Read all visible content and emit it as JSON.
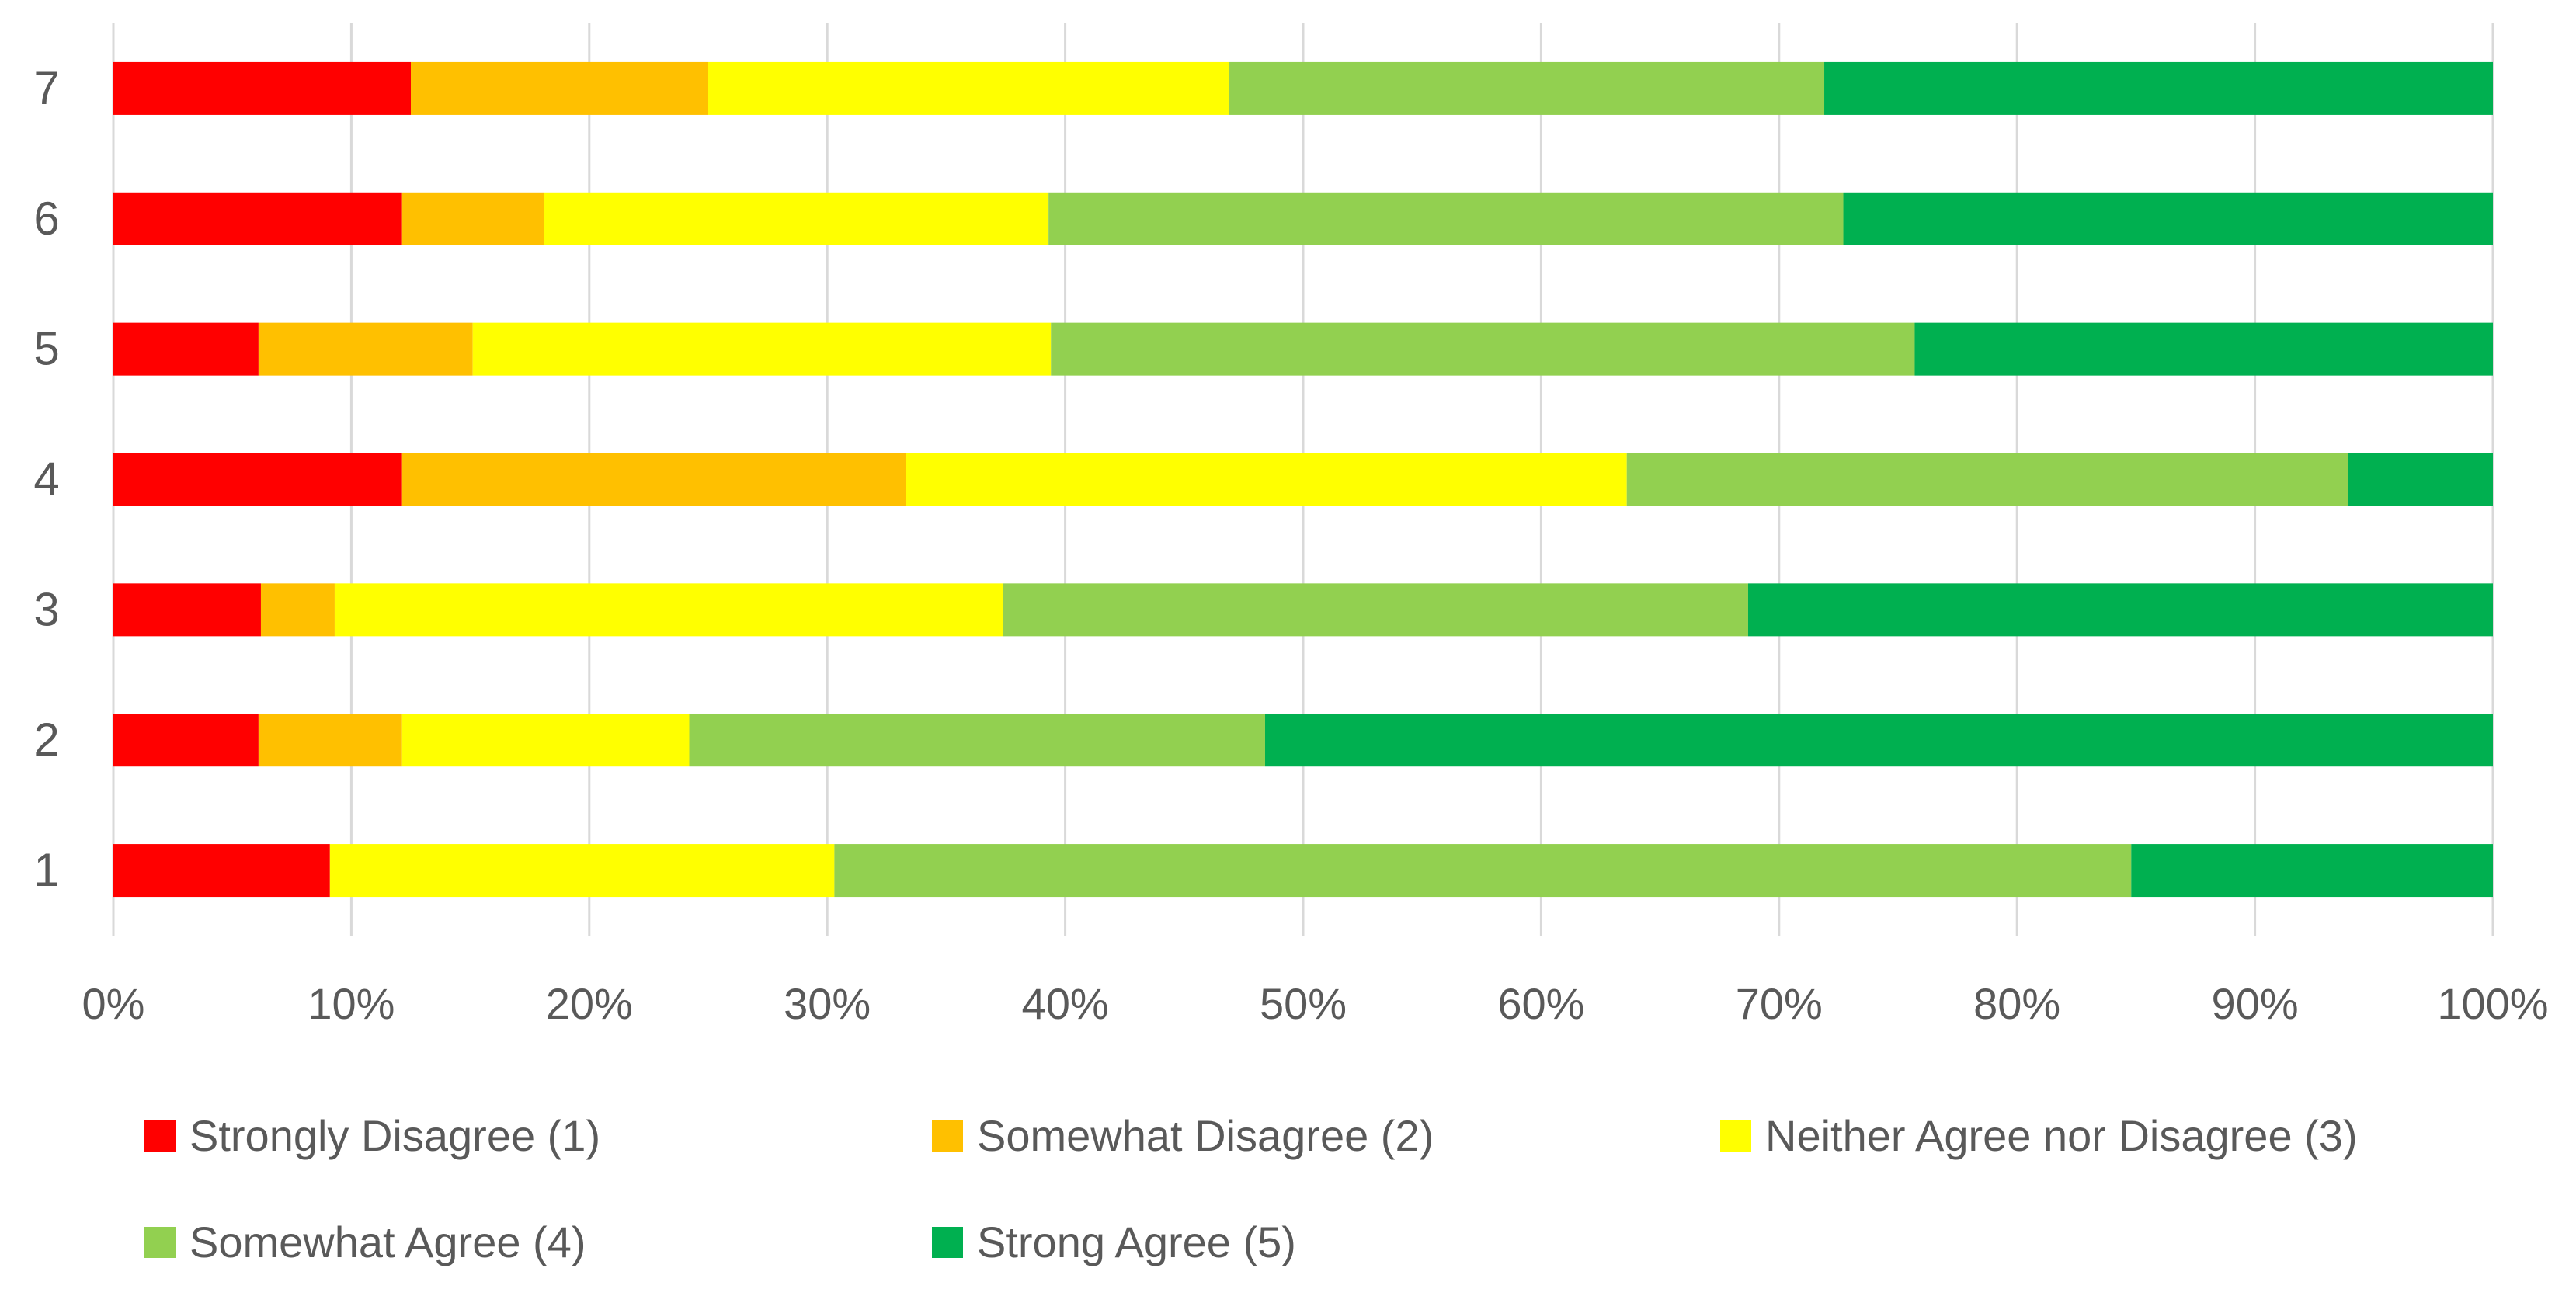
{
  "chart_data": {
    "type": "bar",
    "orientation": "horizontal",
    "stacked": "percent",
    "title": "",
    "xlabel": "",
    "ylabel": "",
    "xlim": [
      0,
      100
    ],
    "grid": true,
    "legend_position": "bottom",
    "categories": [
      "1",
      "2",
      "3",
      "4",
      "5",
      "6",
      "7"
    ],
    "x_tick_labels": [
      "0%",
      "10%",
      "20%",
      "30%",
      "40%",
      "50%",
      "60%",
      "70%",
      "80%",
      "90%",
      "100%"
    ],
    "series": [
      {
        "name": "Strongly Disagree (1)",
        "color": "#ff0000",
        "values": [
          9.1,
          6.1,
          6.2,
          12.1,
          6.1,
          12.1,
          12.5
        ]
      },
      {
        "name": "Somewhat Disagree (2)",
        "color": "#ffc000",
        "values": [
          0,
          6.0,
          3.1,
          21.2,
          9.0,
          6.0,
          12.5
        ]
      },
      {
        "name": "Neither Agree nor Disagree (3)",
        "color": "#ffff00",
        "values": [
          21.2,
          12.1,
          28.1,
          30.3,
          24.3,
          21.2,
          21.9
        ]
      },
      {
        "name": "Somewhat Agree (4)",
        "color": "#92d050",
        "values": [
          54.5,
          24.2,
          31.3,
          30.3,
          36.3,
          33.4,
          25.0
        ]
      },
      {
        "name": "Strong Agree (5)",
        "color": "#00b050",
        "values": [
          15.2,
          51.6,
          31.3,
          6.1,
          24.3,
          27.3,
          28.1
        ]
      }
    ]
  }
}
